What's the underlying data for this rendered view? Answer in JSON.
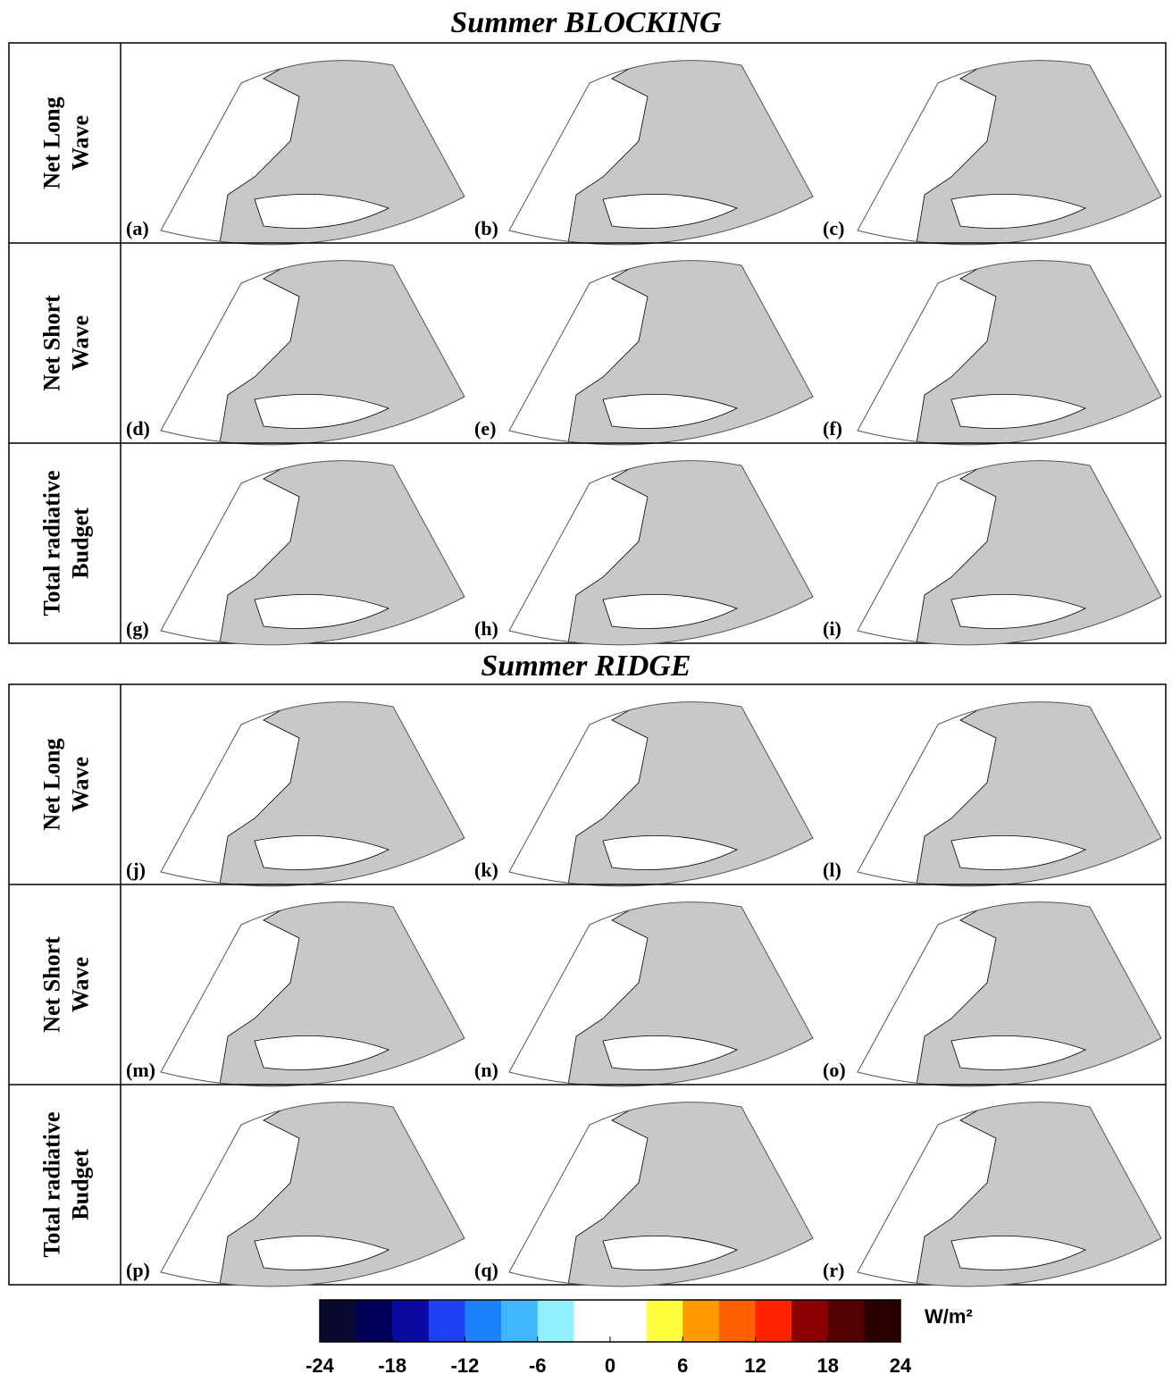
{
  "sections": [
    {
      "title": "Summer BLOCKING",
      "rows": [
        {
          "label": [
            "Net Long",
            "Wave"
          ],
          "panels": [
            "(a)",
            "(b)",
            "(c)"
          ]
        },
        {
          "label": [
            "Net Short",
            "Wave"
          ],
          "panels": [
            "(d)",
            "(e)",
            "(f)"
          ]
        },
        {
          "label": [
            "Total radiative",
            "Budget"
          ],
          "panels": [
            "(g)",
            "(h)",
            "(i)"
          ]
        }
      ]
    },
    {
      "title": "Summer RIDGE",
      "rows": [
        {
          "label": [
            "Net Long",
            "Wave"
          ],
          "panels": [
            "(j)",
            "(k)",
            "(l)"
          ]
        },
        {
          "label": [
            "Net Short",
            "Wave"
          ],
          "panels": [
            "(m)",
            "(n)",
            "(o)"
          ]
        },
        {
          "label": [
            "Total radiative",
            "Budget"
          ],
          "panels": [
            "(p)",
            "(q)",
            "(r)"
          ]
        }
      ]
    }
  ],
  "chart_data": {
    "type": "colorbar",
    "unit": "W/m²",
    "xlim": [
      -24,
      24
    ],
    "xticks": [
      -24,
      -18,
      -12,
      -6,
      0,
      6,
      12,
      18,
      24
    ],
    "colors": [
      "#0a0a30",
      "#00005c",
      "#0a0aa0",
      "#1e40f0",
      "#1e82ff",
      "#40b6ff",
      "#90f2ff",
      "#ffffff",
      "#ffffff",
      "#ffff40",
      "#ff9a00",
      "#ff6000",
      "#ff2200",
      "#8b0000",
      "#520000",
      "#2a0000"
    ]
  }
}
